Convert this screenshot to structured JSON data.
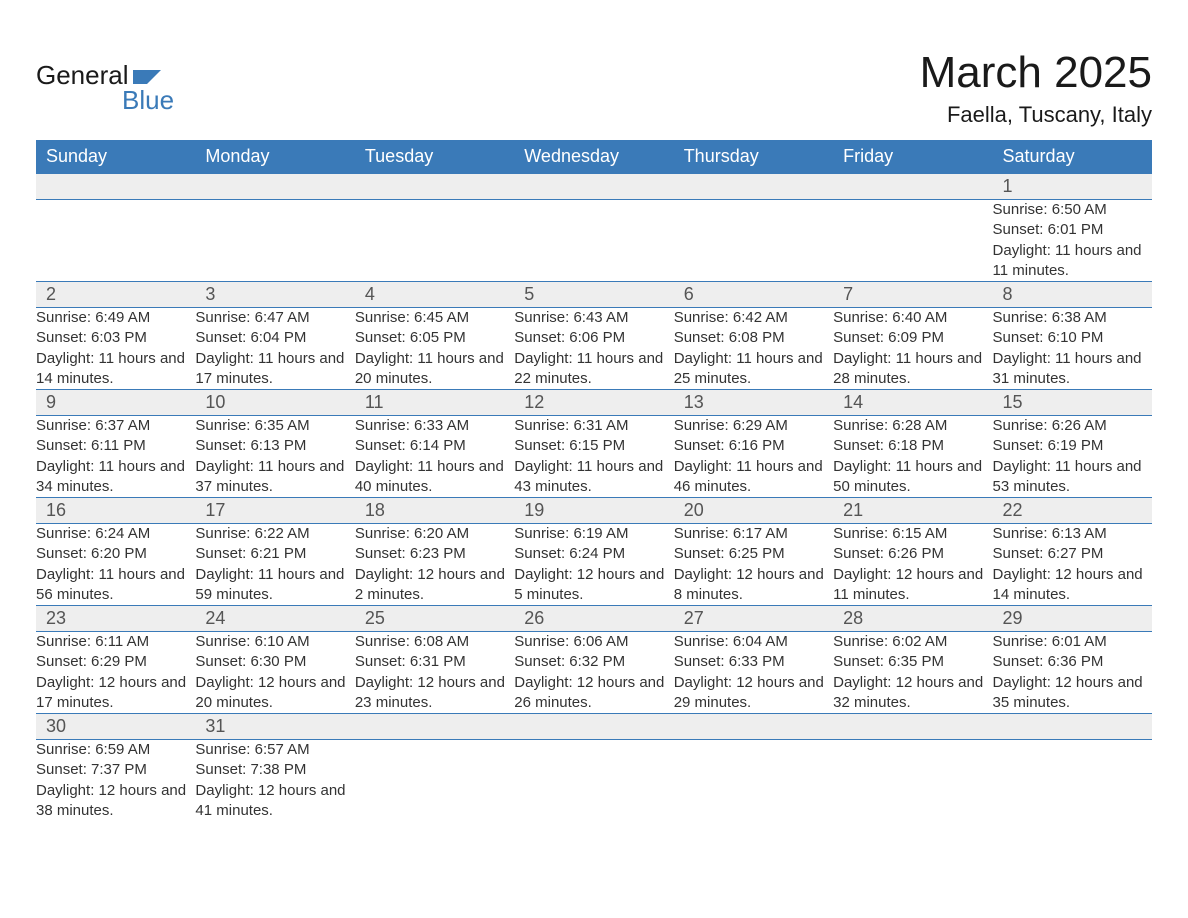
{
  "logo": {
    "word1": "General",
    "word2": "Blue",
    "flag_color": "#3a7ab8"
  },
  "title": "March 2025",
  "location": "Faella, Tuscany, Italy",
  "colors": {
    "header_bg": "#3a7ab8",
    "header_text": "#ffffff",
    "daynum_bg": "#eeeeee",
    "text": "#333333",
    "border": "#3a7ab8"
  },
  "weekdays": [
    "Sunday",
    "Monday",
    "Tuesday",
    "Wednesday",
    "Thursday",
    "Friday",
    "Saturday"
  ],
  "weeks": [
    {
      "days": [
        null,
        null,
        null,
        null,
        null,
        null,
        {
          "n": "1",
          "sunrise": "Sunrise: 6:50 AM",
          "sunset": "Sunset: 6:01 PM",
          "daylight": "Daylight: 11 hours and 11 minutes."
        }
      ]
    },
    {
      "days": [
        {
          "n": "2",
          "sunrise": "Sunrise: 6:49 AM",
          "sunset": "Sunset: 6:03 PM",
          "daylight": "Daylight: 11 hours and 14 minutes."
        },
        {
          "n": "3",
          "sunrise": "Sunrise: 6:47 AM",
          "sunset": "Sunset: 6:04 PM",
          "daylight": "Daylight: 11 hours and 17 minutes."
        },
        {
          "n": "4",
          "sunrise": "Sunrise: 6:45 AM",
          "sunset": "Sunset: 6:05 PM",
          "daylight": "Daylight: 11 hours and 20 minutes."
        },
        {
          "n": "5",
          "sunrise": "Sunrise: 6:43 AM",
          "sunset": "Sunset: 6:06 PM",
          "daylight": "Daylight: 11 hours and 22 minutes."
        },
        {
          "n": "6",
          "sunrise": "Sunrise: 6:42 AM",
          "sunset": "Sunset: 6:08 PM",
          "daylight": "Daylight: 11 hours and 25 minutes."
        },
        {
          "n": "7",
          "sunrise": "Sunrise: 6:40 AM",
          "sunset": "Sunset: 6:09 PM",
          "daylight": "Daylight: 11 hours and 28 minutes."
        },
        {
          "n": "8",
          "sunrise": "Sunrise: 6:38 AM",
          "sunset": "Sunset: 6:10 PM",
          "daylight": "Daylight: 11 hours and 31 minutes."
        }
      ]
    },
    {
      "days": [
        {
          "n": "9",
          "sunrise": "Sunrise: 6:37 AM",
          "sunset": "Sunset: 6:11 PM",
          "daylight": "Daylight: 11 hours and 34 minutes."
        },
        {
          "n": "10",
          "sunrise": "Sunrise: 6:35 AM",
          "sunset": "Sunset: 6:13 PM",
          "daylight": "Daylight: 11 hours and 37 minutes."
        },
        {
          "n": "11",
          "sunrise": "Sunrise: 6:33 AM",
          "sunset": "Sunset: 6:14 PM",
          "daylight": "Daylight: 11 hours and 40 minutes."
        },
        {
          "n": "12",
          "sunrise": "Sunrise: 6:31 AM",
          "sunset": "Sunset: 6:15 PM",
          "daylight": "Daylight: 11 hours and 43 minutes."
        },
        {
          "n": "13",
          "sunrise": "Sunrise: 6:29 AM",
          "sunset": "Sunset: 6:16 PM",
          "daylight": "Daylight: 11 hours and 46 minutes."
        },
        {
          "n": "14",
          "sunrise": "Sunrise: 6:28 AM",
          "sunset": "Sunset: 6:18 PM",
          "daylight": "Daylight: 11 hours and 50 minutes."
        },
        {
          "n": "15",
          "sunrise": "Sunrise: 6:26 AM",
          "sunset": "Sunset: 6:19 PM",
          "daylight": "Daylight: 11 hours and 53 minutes."
        }
      ]
    },
    {
      "days": [
        {
          "n": "16",
          "sunrise": "Sunrise: 6:24 AM",
          "sunset": "Sunset: 6:20 PM",
          "daylight": "Daylight: 11 hours and 56 minutes."
        },
        {
          "n": "17",
          "sunrise": "Sunrise: 6:22 AM",
          "sunset": "Sunset: 6:21 PM",
          "daylight": "Daylight: 11 hours and 59 minutes."
        },
        {
          "n": "18",
          "sunrise": "Sunrise: 6:20 AM",
          "sunset": "Sunset: 6:23 PM",
          "daylight": "Daylight: 12 hours and 2 minutes."
        },
        {
          "n": "19",
          "sunrise": "Sunrise: 6:19 AM",
          "sunset": "Sunset: 6:24 PM",
          "daylight": "Daylight: 12 hours and 5 minutes."
        },
        {
          "n": "20",
          "sunrise": "Sunrise: 6:17 AM",
          "sunset": "Sunset: 6:25 PM",
          "daylight": "Daylight: 12 hours and 8 minutes."
        },
        {
          "n": "21",
          "sunrise": "Sunrise: 6:15 AM",
          "sunset": "Sunset: 6:26 PM",
          "daylight": "Daylight: 12 hours and 11 minutes."
        },
        {
          "n": "22",
          "sunrise": "Sunrise: 6:13 AM",
          "sunset": "Sunset: 6:27 PM",
          "daylight": "Daylight: 12 hours and 14 minutes."
        }
      ]
    },
    {
      "days": [
        {
          "n": "23",
          "sunrise": "Sunrise: 6:11 AM",
          "sunset": "Sunset: 6:29 PM",
          "daylight": "Daylight: 12 hours and 17 minutes."
        },
        {
          "n": "24",
          "sunrise": "Sunrise: 6:10 AM",
          "sunset": "Sunset: 6:30 PM",
          "daylight": "Daylight: 12 hours and 20 minutes."
        },
        {
          "n": "25",
          "sunrise": "Sunrise: 6:08 AM",
          "sunset": "Sunset: 6:31 PM",
          "daylight": "Daylight: 12 hours and 23 minutes."
        },
        {
          "n": "26",
          "sunrise": "Sunrise: 6:06 AM",
          "sunset": "Sunset: 6:32 PM",
          "daylight": "Daylight: 12 hours and 26 minutes."
        },
        {
          "n": "27",
          "sunrise": "Sunrise: 6:04 AM",
          "sunset": "Sunset: 6:33 PM",
          "daylight": "Daylight: 12 hours and 29 minutes."
        },
        {
          "n": "28",
          "sunrise": "Sunrise: 6:02 AM",
          "sunset": "Sunset: 6:35 PM",
          "daylight": "Daylight: 12 hours and 32 minutes."
        },
        {
          "n": "29",
          "sunrise": "Sunrise: 6:01 AM",
          "sunset": "Sunset: 6:36 PM",
          "daylight": "Daylight: 12 hours and 35 minutes."
        }
      ]
    },
    {
      "days": [
        {
          "n": "30",
          "sunrise": "Sunrise: 6:59 AM",
          "sunset": "Sunset: 7:37 PM",
          "daylight": "Daylight: 12 hours and 38 minutes."
        },
        {
          "n": "31",
          "sunrise": "Sunrise: 6:57 AM",
          "sunset": "Sunset: 7:38 PM",
          "daylight": "Daylight: 12 hours and 41 minutes."
        },
        null,
        null,
        null,
        null,
        null
      ]
    }
  ]
}
